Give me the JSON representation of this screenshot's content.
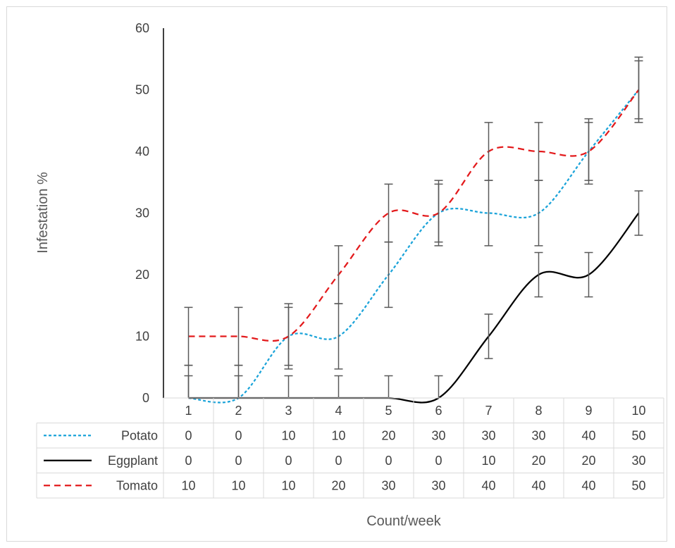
{
  "chart_data": {
    "type": "line",
    "title": "",
    "xlabel": "Count/week",
    "ylabel": "Infestation %",
    "categories": [
      "1",
      "2",
      "3",
      "4",
      "5",
      "6",
      "7",
      "8",
      "9",
      "10"
    ],
    "ylim": [
      0,
      60
    ],
    "yticks": [
      "0",
      "10",
      "20",
      "30",
      "40",
      "50",
      "60"
    ],
    "grid": false,
    "legend": "data-table-left",
    "series": [
      {
        "name": "Potato",
        "values": [
          0,
          0,
          10,
          10,
          20,
          30,
          30,
          30,
          40,
          50
        ],
        "color": "#1aa3d9",
        "dash": "short-dash",
        "error": 5.3
      },
      {
        "name": "Eggplant",
        "values": [
          0,
          0,
          0,
          0,
          0,
          0,
          10,
          20,
          20,
          30
        ],
        "color": "#000000",
        "dash": "solid",
        "error": 3.6
      },
      {
        "name": "Tomato",
        "values": [
          10,
          10,
          10,
          20,
          30,
          30,
          40,
          40,
          40,
          50
        ],
        "color": "#e31a1c",
        "dash": "dash",
        "error": 4.7
      }
    ],
    "errorbar_color": "#595959"
  }
}
